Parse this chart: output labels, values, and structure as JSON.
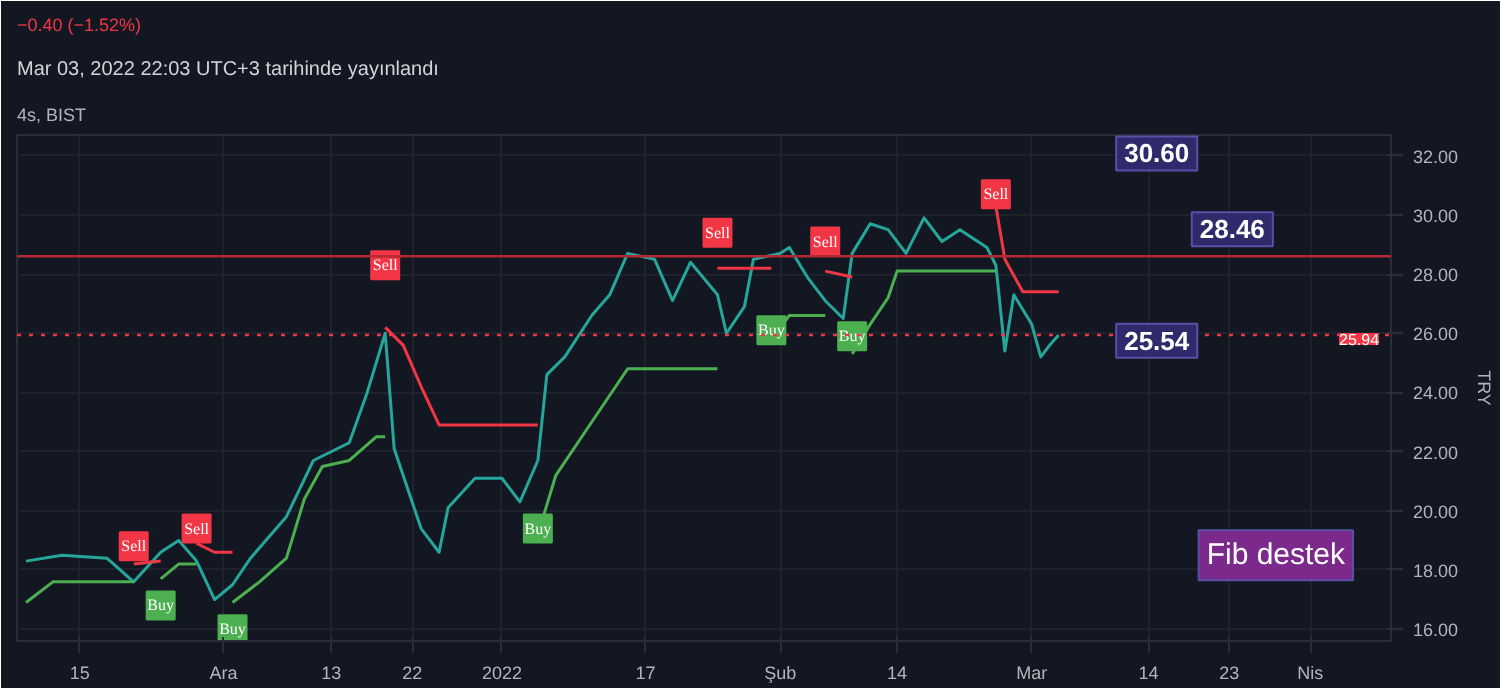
{
  "chart_data": {
    "type": "line",
    "title": "Mar 03, 2022 22:03 UTC+3 tarihinde yayınlandı",
    "subtitle": "4s, BIST",
    "ylabel": "TRY",
    "annotations": [
      "−0.40 (−1.52%)",
      "30.60",
      "28.46",
      "25.54",
      "Fib destek"
    ],
    "series": [
      {
        "color": "#26a69a",
        "x": [
          "2021-11-09",
          "2021-11-13",
          "2021-11-18",
          "2021-11-21",
          "2021-11-24",
          "2021-11-26",
          "2021-11-28",
          "2021-11-30",
          "2021-12-02",
          "2021-12-04",
          "2021-12-08",
          "2021-12-11",
          "2021-12-15",
          "2021-12-17",
          "2021-12-19",
          "2021-12-20",
          "2021-12-23",
          "2021-12-25",
          "2021-12-26",
          "2021-12-29",
          "2022-01-01",
          "2022-01-03",
          "2022-01-05",
          "2022-01-06",
          "2022-01-08",
          "2022-01-11",
          "2022-01-13",
          "2022-01-15",
          "2022-01-18",
          "2022-01-20",
          "2022-01-22",
          "2022-01-25",
          "2022-01-26",
          "2022-01-28",
          "2022-01-29",
          "2022-02-01",
          "2022-02-02",
          "2022-02-04",
          "2022-02-06",
          "2022-02-08",
          "2022-02-09",
          "2022-02-11",
          "2022-02-13",
          "2022-02-15",
          "2022-02-17",
          "2022-02-19",
          "2022-02-21",
          "2022-02-24",
          "2022-02-25",
          "2022-02-26",
          "2022-02-27",
          "2022-03-01",
          "2022-03-02",
          "2022-03-03",
          "2022-03-04"
        ],
        "values": [
          18.3,
          18.5,
          18.4,
          17.6,
          18.6,
          19.0,
          18.3,
          17.0,
          17.5,
          18.4,
          19.8,
          21.7,
          22.3,
          24.0,
          26.0,
          22.1,
          19.4,
          18.6,
          20.1,
          21.1,
          21.1,
          20.3,
          21.7,
          24.6,
          25.2,
          26.6,
          27.3,
          28.7,
          28.5,
          27.1,
          28.4,
          27.3,
          26.0,
          26.9,
          28.5,
          28.7,
          28.9,
          27.9,
          27.1,
          26.5,
          28.7,
          29.7,
          29.5,
          28.7,
          29.9,
          29.1,
          29.5,
          28.9,
          28.3,
          25.4,
          27.3,
          26.3,
          25.2,
          25.6,
          25.94
        ]
      },
      {
        "color": "#4caf50",
        "x": [
          "2021-11-09",
          "2021-11-12",
          "2021-11-21",
          "2021-11-22",
          "2021-11-24",
          "2021-11-26",
          "2021-11-28",
          "2021-11-29",
          "2021-12-02",
          "2021-12-05",
          "2021-12-08",
          "2021-12-10",
          "2021-12-12",
          "2021-12-15",
          "2021-12-18",
          "2021-12-19",
          "2021-12-20",
          "2022-01-05",
          "2022-01-07",
          "2022-01-11",
          "2022-01-15",
          "2022-01-25",
          "2022-01-26",
          "2022-01-31",
          "2022-02-02",
          "2022-02-06",
          "2022-02-07",
          "2022-02-09",
          "2022-02-11",
          "2022-02-13",
          "2022-02-14",
          "2022-02-25"
        ],
        "values": [
          16.9,
          17.6,
          17.6,
          null,
          17.7,
          18.2,
          18.2,
          null,
          16.9,
          17.6,
          18.4,
          20.4,
          21.5,
          21.7,
          22.5,
          22.5,
          null,
          19.2,
          21.2,
          23.0,
          24.8,
          24.8,
          null,
          25.8,
          26.6,
          26.6,
          null,
          25.3,
          26.3,
          27.2,
          28.1,
          28.1
        ]
      },
      {
        "color": "#f23645",
        "x": [
          "2021-11-21",
          "2021-11-24",
          "2021-11-25",
          "2021-11-28",
          "2021-11-30",
          "2021-12-02",
          "2021-12-03",
          "2021-12-19",
          "2021-12-21",
          "2021-12-23",
          "2021-12-25",
          "2022-01-05",
          "2022-01-06",
          "2022-01-25",
          "2022-01-31",
          "2022-02-01",
          "2022-02-06",
          "2022-02-09",
          "2022-02-10",
          "2022-02-25",
          "2022-02-26",
          "2022-02-28",
          "2022-03-04"
        ],
        "values": [
          18.2,
          18.3,
          null,
          18.9,
          18.6,
          18.6,
          null,
          26.2,
          25.6,
          24.2,
          22.9,
          22.9,
          null,
          28.2,
          28.2,
          null,
          28.1,
          27.9,
          null,
          30.3,
          28.5,
          27.4,
          27.4
        ]
      },
      {
        "type": "scatter",
        "marker": "square",
        "name": "Sell",
        "color": "#f23645",
        "x": [
          "2021-11-21",
          "2021-11-28",
          "2021-12-19",
          "2022-01-25",
          "2022-02-06",
          "2022-02-25"
        ],
        "values": [
          18.8,
          19.4,
          28.3,
          29.4,
          29.1,
          30.7
        ]
      },
      {
        "type": "scatter",
        "marker": "square",
        "name": "Buy",
        "color": "#4caf50",
        "x": [
          "2021-11-24",
          "2021-12-02",
          "2022-01-05",
          "2022-01-31",
          "2022-02-09"
        ],
        "values": [
          16.8,
          16.0,
          19.4,
          26.1,
          25.9
        ]
      }
    ],
    "ref_lines": [
      {
        "axis": "y",
        "value": 28.6,
        "label": null,
        "color": "#b22833"
      },
      {
        "axis": "y",
        "value": 25.94,
        "label": "25.94",
        "color": "#f23645",
        "line_style": "dotted"
      }
    ],
    "xlim": [
      "2021-11-08",
      "2022-04-10"
    ],
    "xticks": [
      {
        "value": "2021-11-15",
        "label": "15"
      },
      {
        "value": "2021-12-01",
        "label": "Ara"
      },
      {
        "value": "2021-12-13",
        "label": "13"
      },
      {
        "value": "2021-12-22",
        "label": "22"
      },
      {
        "value": "2022-01-01",
        "label": "2022"
      },
      {
        "value": "2022-01-17",
        "label": "17"
      },
      {
        "value": "2022-02-01",
        "label": "Şub"
      },
      {
        "value": "2022-02-14",
        "label": "14"
      },
      {
        "value": "2022-03-01",
        "label": "Mar"
      },
      {
        "value": "2022-03-14",
        "label": "14"
      },
      {
        "value": "2022-03-23",
        "label": "23"
      },
      {
        "value": "2022-04-01",
        "label": "Nis"
      }
    ],
    "ylim": [
      15.6,
      32.7
    ],
    "yticks": [
      {
        "value": 16,
        "label": "16.00"
      },
      {
        "value": 18,
        "label": "18.00"
      },
      {
        "value": 20,
        "label": "20.00"
      },
      {
        "value": 22,
        "label": "22.00"
      },
      {
        "value": 24,
        "label": "24.00"
      },
      {
        "value": 26,
        "label": "26.00"
      },
      {
        "value": 28,
        "label": "28.00"
      },
      {
        "value": 30,
        "label": "30.00"
      },
      {
        "value": 32,
        "label": "32.00"
      }
    ],
    "grid": true,
    "line_style": "solid"
  }
}
